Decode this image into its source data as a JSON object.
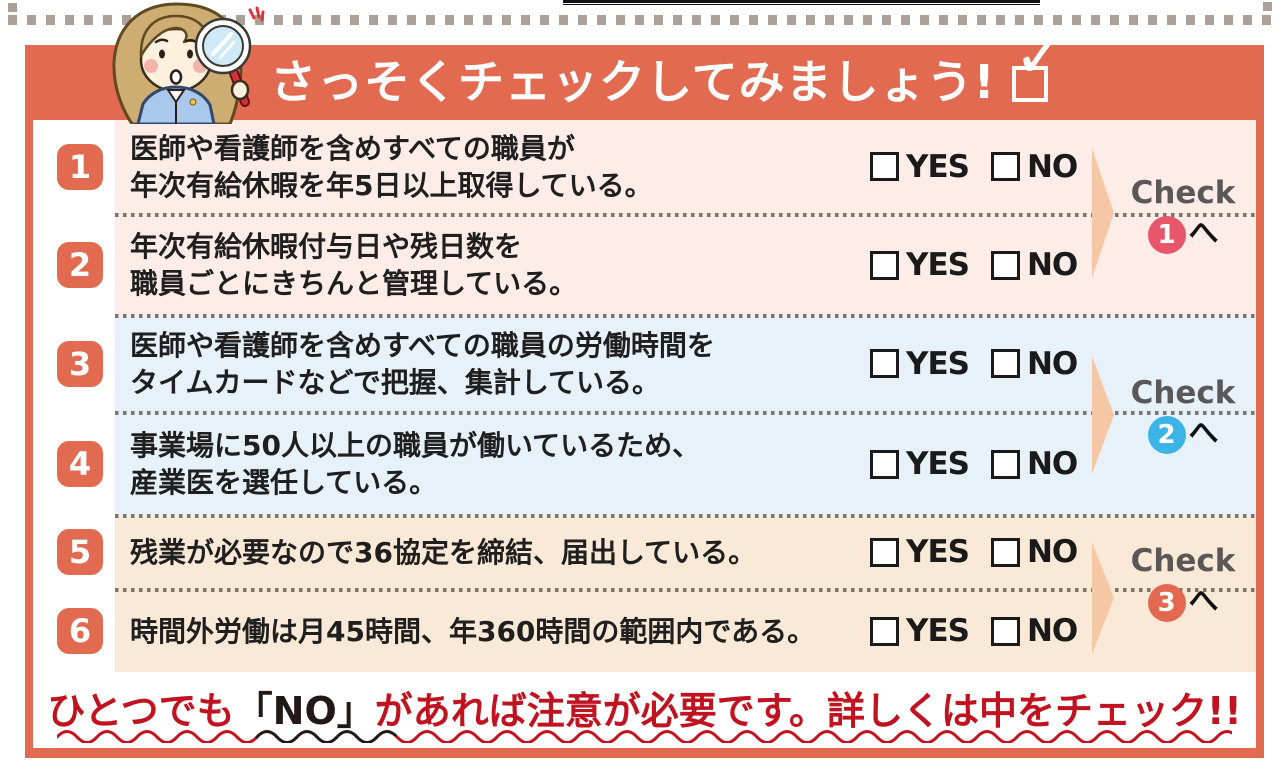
{
  "banner": {
    "title": "さっそくチェックしてみましょう!"
  },
  "answer_labels": {
    "yes": "YES",
    "no": "NO"
  },
  "questions": [
    {
      "number": "1",
      "line1": "医師や看護師を含めすべての職員が",
      "line2": "年次有給休暇を年5日以上取得している。"
    },
    {
      "number": "2",
      "line1": "年次有給休暇付与日や残日数を",
      "line2": "職員ごとにきちんと管理している。"
    },
    {
      "number": "3",
      "line1": "医師や看護師を含めすべての職員の労働時間を",
      "line2": "タイムカードなどで把握、集計している。"
    },
    {
      "number": "4",
      "line1": "事業場に50人以上の職員が働いているため、",
      "line2": "産業医を選任している。"
    },
    {
      "number": "5",
      "line1": "残業が必要なので36協定を締結、届出している。"
    },
    {
      "number": "6",
      "line1": "時間外労働は月45時間、年360時間の範囲内である。"
    }
  ],
  "check_links": [
    {
      "label": "Check",
      "number": "1",
      "suffix": "へ",
      "circle_color": "#e8566c"
    },
    {
      "label": "Check",
      "number": "2",
      "suffix": "へ",
      "circle_color": "#3cb4e8"
    },
    {
      "label": "Check",
      "number": "3",
      "suffix": "へ",
      "circle_color": "#e2694f"
    }
  ],
  "footer": {
    "segments": [
      {
        "text": "ひとつでも",
        "color": "#c0121f"
      },
      {
        "text": "「NO」",
        "color": "#231815"
      },
      {
        "text": "があれば注意が必要です。詳しくは中をチェック!!",
        "color": "#c0121f"
      }
    ]
  },
  "colors": {
    "frame_and_banner": "#e16a50",
    "section_pink": "#fdece7",
    "section_blue": "#e7f1f9",
    "section_peach": "#fbe9d8",
    "arrow_peach": "#f5c7a4",
    "check_label_gray": "#595757",
    "footer_red": "#c0121f",
    "footer_black": "#231815",
    "dash_border": "#aba198",
    "dotted_divider": "#7b756e"
  }
}
